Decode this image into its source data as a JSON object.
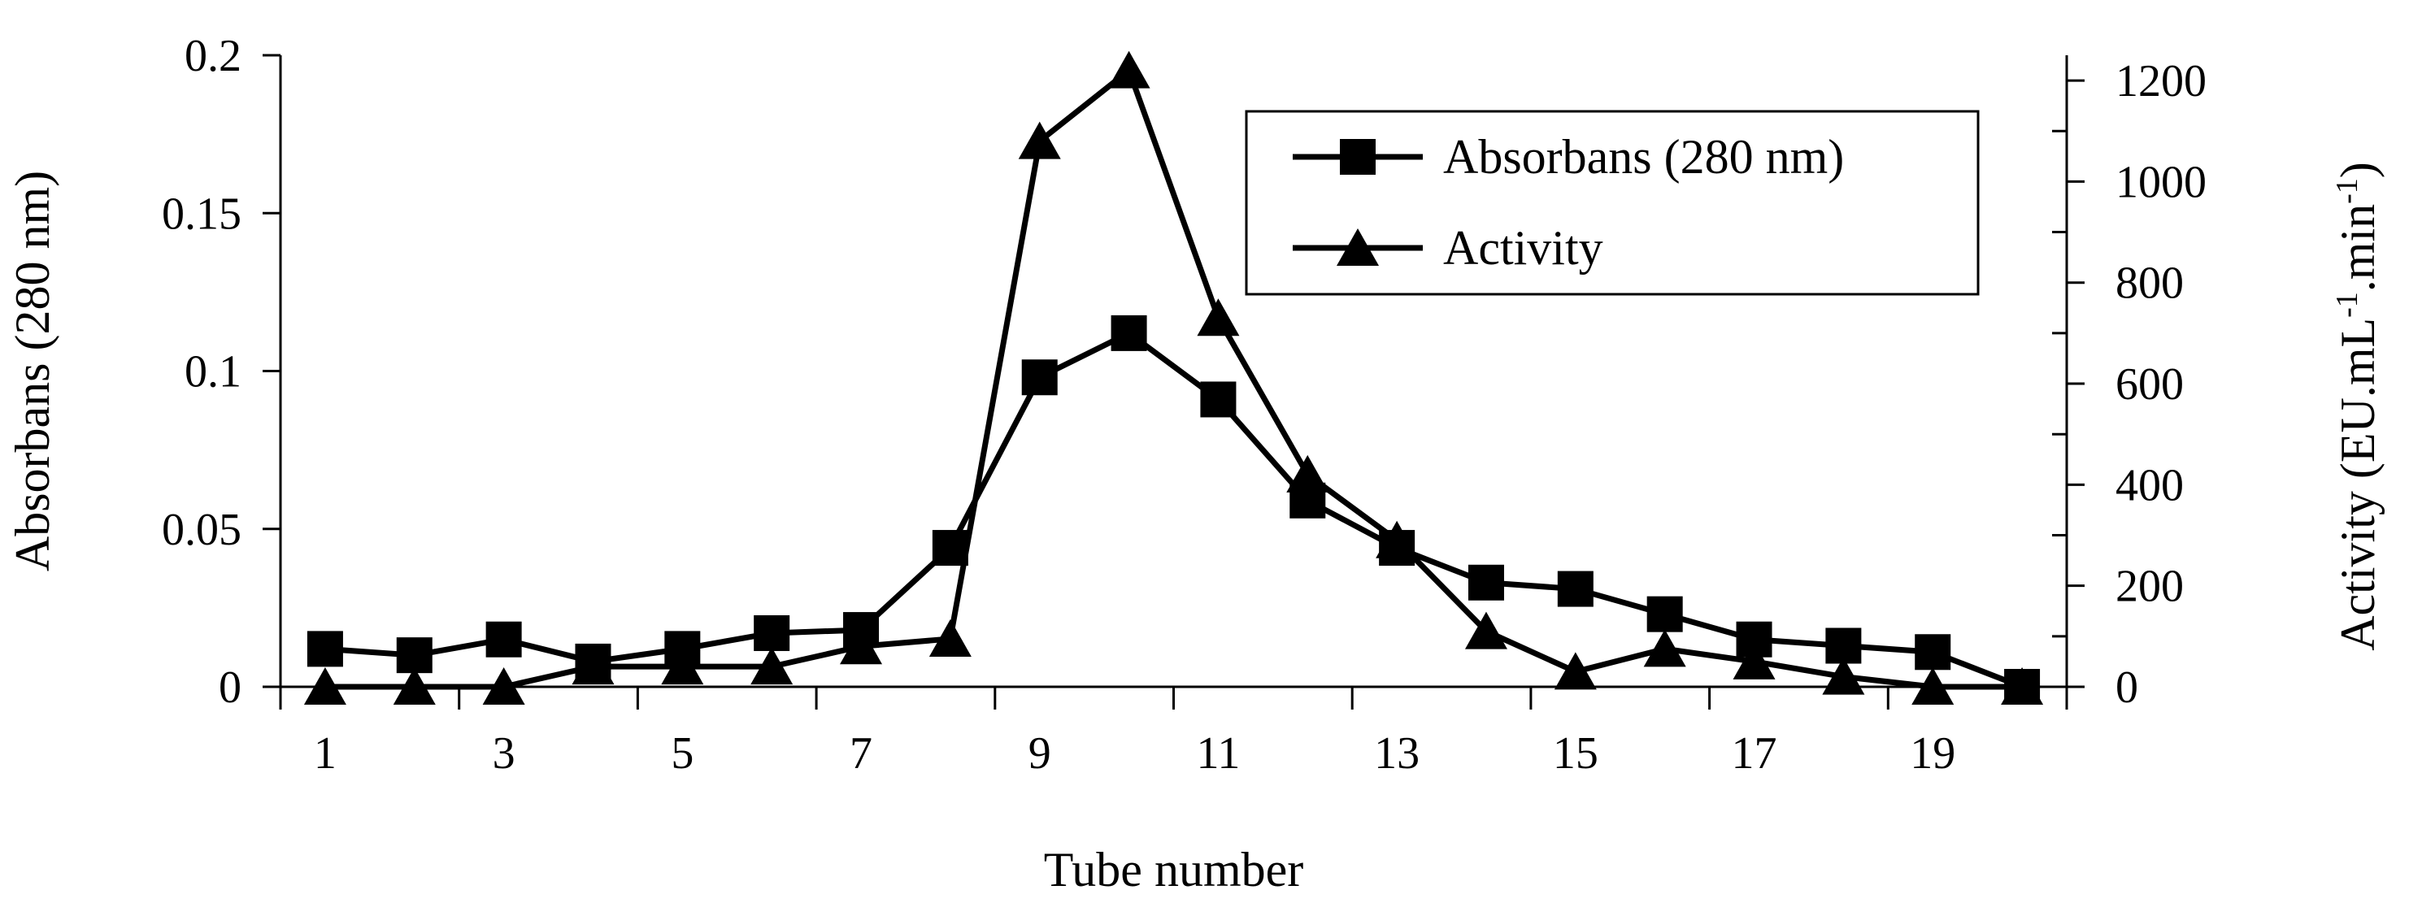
{
  "chart_data": {
    "type": "line",
    "xlabel": "Tube number",
    "x": [
      1,
      2,
      3,
      4,
      5,
      6,
      7,
      8,
      9,
      10,
      11,
      12,
      13,
      14,
      15,
      16,
      17,
      18,
      19,
      20
    ],
    "x_tick_labels": [
      "1",
      "3",
      "5",
      "7",
      "9",
      "11",
      "13",
      "15",
      "17",
      "19"
    ],
    "y_left": {
      "label": "Absorbans  (280 nm)",
      "lim": [
        0,
        0.2
      ],
      "ticks": [
        "0",
        "0.05",
        "0.1",
        "0.15",
        "0.2"
      ]
    },
    "y_right": {
      "label_main": "Activity  (EU.mL",
      "label_sup1": "-1",
      "label_mid": ".min",
      "label_sup2": "-1",
      "label_end": ")",
      "lim": [
        0,
        1250
      ],
      "ticks": [
        "0",
        "200",
        "400",
        "600",
        "800",
        "1000",
        "1200"
      ]
    },
    "series": [
      {
        "name": "Absorbans (280 nm)",
        "marker": "square",
        "axis": "left",
        "values": [
          0.012,
          0.01,
          0.015,
          0.008,
          0.012,
          0.017,
          0.018,
          0.044,
          0.098,
          0.112,
          0.091,
          0.059,
          0.044,
          0.033,
          0.031,
          0.023,
          0.015,
          0.013,
          0.011,
          0.0
        ]
      },
      {
        "name": "Activity",
        "marker": "triangle",
        "axis": "right",
        "values": [
          0,
          0,
          0,
          40,
          40,
          40,
          80,
          95,
          1080,
          1220,
          730,
          420,
          290,
          110,
          30,
          75,
          50,
          20,
          0,
          0
        ]
      }
    ],
    "legend_position": "top-right",
    "grid": false
  }
}
